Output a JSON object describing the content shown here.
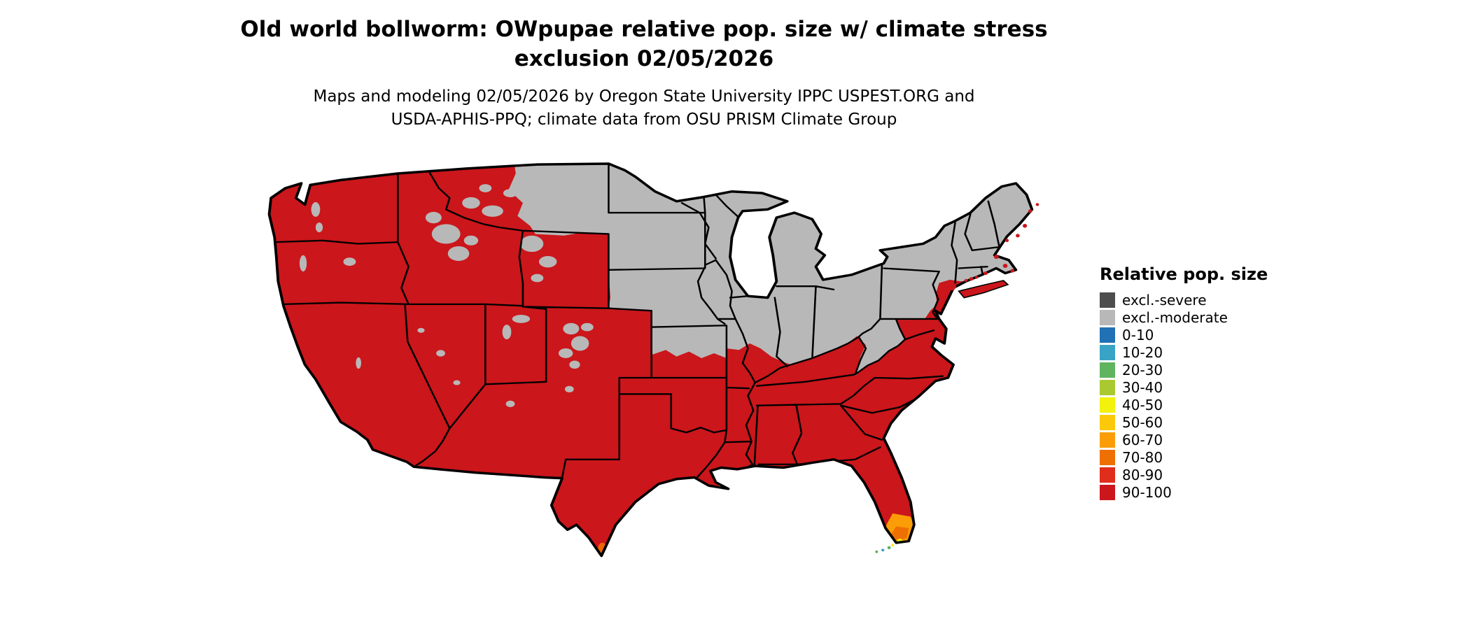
{
  "title": {
    "line1": "Old world bollworm: OWpupae relative pop. size w/ climate stress",
    "line2": "exclusion 02/05/2026"
  },
  "subtitle": {
    "line1": "Maps and modeling 02/05/2026 by Oregon State University IPPC USPEST.ORG and",
    "line2": "USDA-APHIS-PPQ; climate data from OSU PRISM Climate Group"
  },
  "legend": {
    "title": "Relative pop. size",
    "items": [
      {
        "label": "excl.-severe",
        "color": "#4d4d4d"
      },
      {
        "label": "excl.-moderate",
        "color": "#b8b8b8"
      },
      {
        "label": "0-10",
        "color": "#2171b5"
      },
      {
        "label": "10-20",
        "color": "#39a3c6"
      },
      {
        "label": "20-30",
        "color": "#5fb45f"
      },
      {
        "label": "30-40",
        "color": "#aac931"
      },
      {
        "label": "40-50",
        "color": "#f2f20d"
      },
      {
        "label": "50-60",
        "color": "#fcc80a"
      },
      {
        "label": "60-70",
        "color": "#fb9d06"
      },
      {
        "label": "70-80",
        "color": "#ee6f02"
      },
      {
        "label": "80-90",
        "color": "#e02d1c"
      },
      {
        "label": "90-100",
        "color": "#cb161b"
      }
    ]
  },
  "map": {
    "colors": {
      "base": "#cb161b",
      "excluded": "#b8b8b8",
      "hot60": "#fb9d06",
      "hot70": "#ee6f02",
      "yellow": "#f2f20d",
      "green": "#5fb45f",
      "teal": "#39a3c6"
    },
    "regions": {
      "high_population": "90-100 across southern and western United States",
      "excluded_moderate": "Northern plains, upper Midwest, Great Lakes states and Northeast interior",
      "hotspot_gradient": "South Florida tip grades from red through orange to yellow/green at the Keys"
    }
  }
}
